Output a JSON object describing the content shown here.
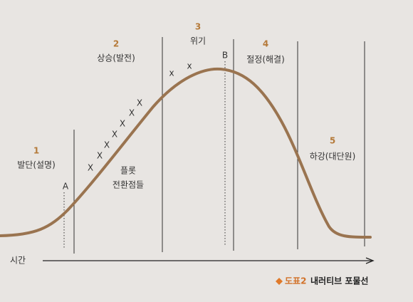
{
  "stages": [
    {
      "number": "1",
      "label": "발단(설명)"
    },
    {
      "number": "2",
      "label": "상승(발전)"
    },
    {
      "number": "3",
      "label": "위기"
    },
    {
      "number": "4",
      "label": "절정(해결)"
    },
    {
      "number": "5",
      "label": "하강(대단원)"
    }
  ],
  "plot_label": [
    "플롯",
    "전환점들"
  ],
  "points": [
    "A",
    "B"
  ],
  "markers": [
    "X",
    "X",
    "X",
    "X",
    "X",
    "X",
    "X",
    "x",
    "x"
  ],
  "axis_label": "시간",
  "caption": {
    "label": "도표2",
    "title": "내러티브 포물선"
  }
}
